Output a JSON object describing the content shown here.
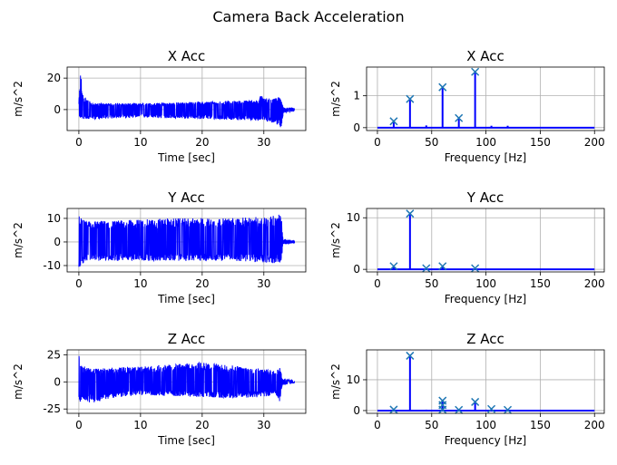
{
  "chart_data": {
    "title": "Camera Back Acceleration",
    "colors": {
      "signal": "#0000ff",
      "marker": "#1f77b4",
      "grid": "#b0b0b0"
    },
    "charts": [
      {
        "id": "x-time",
        "type": "line",
        "title": "X Acc",
        "xlabel": "Time [sec]",
        "ylabel": "m/s^2",
        "xlim": [
          -1.9,
          36.8
        ],
        "ylim": [
          -13.3,
          27
        ],
        "xticks": [
          0,
          10,
          20,
          30
        ],
        "yticks": [
          0,
          20
        ],
        "envelope": [
          [
            0,
            -4,
            5
          ],
          [
            0.3,
            -6,
            25
          ],
          [
            0.6,
            -6,
            10
          ],
          [
            1.5,
            -6,
            6
          ],
          [
            2,
            -6,
            4
          ],
          [
            10,
            -5,
            4
          ],
          [
            20,
            -6,
            5
          ],
          [
            29,
            -7,
            6
          ],
          [
            29.5,
            -7,
            9
          ],
          [
            30,
            -7,
            9
          ],
          [
            31,
            -8,
            6
          ],
          [
            32.5,
            -10,
            8
          ],
          [
            32.8,
            -12,
            6
          ],
          [
            33.2,
            -2,
            1
          ],
          [
            35,
            -1,
            1
          ]
        ]
      },
      {
        "id": "x-fft",
        "type": "stem",
        "title": "X Acc",
        "xlabel": "Frequency [Hz]",
        "ylabel": "m/s^2",
        "xlim": [
          -10,
          209
        ],
        "ylim": [
          -0.09,
          1.9
        ],
        "xticks": [
          0,
          50,
          100,
          150,
          200
        ],
        "yticks": [
          0,
          1
        ],
        "stems": [
          [
            15,
            0.2
          ],
          [
            30,
            0.9
          ],
          [
            45,
            0.07
          ],
          [
            60,
            1.27
          ],
          [
            75,
            0.3
          ],
          [
            90,
            1.75
          ],
          [
            105,
            0.06
          ],
          [
            120,
            0.06
          ]
        ],
        "markers": [
          [
            15,
            0.2
          ],
          [
            30,
            0.9
          ],
          [
            60,
            1.27
          ],
          [
            75,
            0.3
          ],
          [
            90,
            1.75
          ]
        ]
      },
      {
        "id": "y-time",
        "type": "line",
        "title": "Y Acc",
        "xlabel": "Time [sec]",
        "ylabel": "m/s^2",
        "xlim": [
          -1.9,
          36.8
        ],
        "ylim": [
          -12.7,
          14.2
        ],
        "xticks": [
          0,
          10,
          20,
          30
        ],
        "yticks": [
          -10,
          0,
          10
        ],
        "envelope": [
          [
            0,
            -11,
            11
          ],
          [
            0.4,
            -10,
            10
          ],
          [
            1,
            -8,
            9
          ],
          [
            5,
            -8,
            9
          ],
          [
            15,
            -8,
            10
          ],
          [
            25,
            -8,
            10
          ],
          [
            31,
            -9,
            11
          ],
          [
            32.8,
            -9,
            12
          ],
          [
            33.1,
            -1,
            1
          ],
          [
            35,
            -0.5,
            0.5
          ]
        ]
      },
      {
        "id": "y-fft",
        "type": "stem",
        "title": "Y Acc",
        "xlabel": "Frequency [Hz]",
        "ylabel": "m/s^2",
        "xlim": [
          -10,
          209
        ],
        "ylim": [
          -0.5,
          11.8
        ],
        "xticks": [
          0,
          50,
          100,
          150,
          200
        ],
        "yticks": [
          0,
          10
        ],
        "stems": [
          [
            15,
            0.6
          ],
          [
            30,
            10.8
          ],
          [
            45,
            0.2
          ],
          [
            60,
            0.6
          ],
          [
            90,
            0.2
          ]
        ],
        "markers": [
          [
            15,
            0.6
          ],
          [
            30,
            10.8
          ],
          [
            45,
            0.2
          ],
          [
            60,
            0.6
          ],
          [
            90,
            0.2
          ]
        ]
      },
      {
        "id": "z-time",
        "type": "line",
        "title": "Z Acc",
        "xlabel": "Time [sec]",
        "ylabel": "m/s^2",
        "xlim": [
          -1.9,
          36.8
        ],
        "ylim": [
          -29,
          29.5
        ],
        "xticks": [
          0,
          10,
          20,
          30
        ],
        "yticks": [
          -25,
          0,
          25
        ],
        "envelope": [
          [
            0,
            -22,
            25
          ],
          [
            0.5,
            -15,
            15
          ],
          [
            2,
            -20,
            12
          ],
          [
            5,
            -15,
            13
          ],
          [
            10,
            -12,
            14
          ],
          [
            20,
            -14,
            18
          ],
          [
            25,
            -15,
            15
          ],
          [
            30,
            -14,
            12
          ],
          [
            32,
            -12,
            10
          ],
          [
            32.6,
            -20,
            14
          ],
          [
            33,
            -3,
            3
          ],
          [
            35,
            -1,
            1
          ]
        ]
      },
      {
        "id": "z-fft",
        "type": "stem",
        "title": "Z Acc",
        "xlabel": "Frequency [Hz]",
        "ylabel": "m/s^2",
        "xlim": [
          -10,
          209
        ],
        "ylim": [
          -0.9,
          19.7
        ],
        "xticks": [
          0,
          50,
          100,
          150,
          200
        ],
        "yticks": [
          0,
          10
        ],
        "stems": [
          [
            15,
            0.3
          ],
          [
            30,
            17.8
          ],
          [
            45,
            0.3
          ],
          [
            60,
            3.2
          ],
          [
            75,
            0.2
          ],
          [
            90,
            2.8
          ],
          [
            105,
            0.5
          ],
          [
            120,
            0.2
          ]
        ],
        "markers": [
          [
            15,
            0.3
          ],
          [
            30,
            17.8
          ],
          [
            60,
            3.2
          ],
          [
            60,
            1.8
          ],
          [
            60,
            0.3
          ],
          [
            75,
            0.2
          ],
          [
            90,
            2.8
          ],
          [
            105,
            0.5
          ],
          [
            120,
            0.2
          ]
        ]
      }
    ]
  }
}
